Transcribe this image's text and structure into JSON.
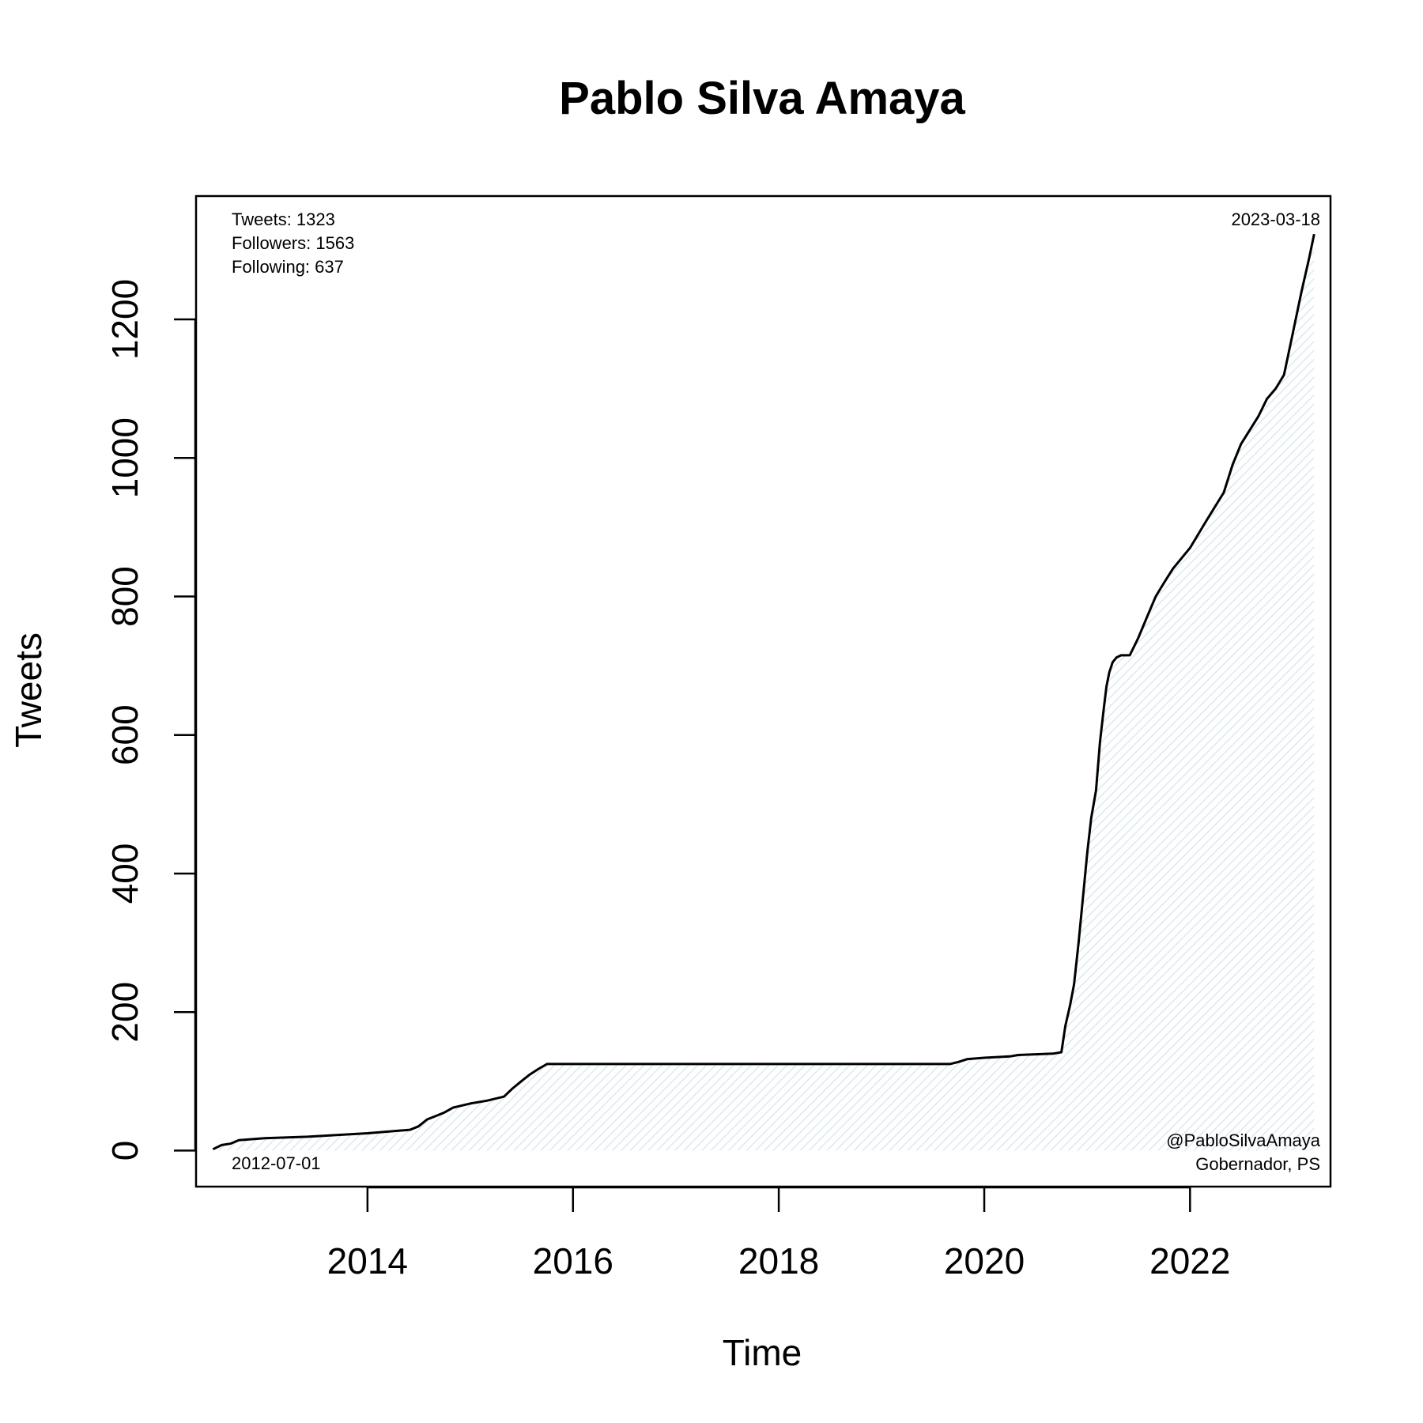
{
  "chart_data": {
    "type": "area",
    "title": "Pablo Silva Amaya",
    "xlabel": "Time",
    "ylabel": "Tweets",
    "x_ticks": [
      "2014",
      "2016",
      "2018",
      "2020",
      "2022"
    ],
    "y_ticks": [
      "0",
      "200",
      "400",
      "600",
      "800",
      "1000",
      "1200"
    ],
    "xlim": [
      "2012-05-02",
      "2023-05-15"
    ],
    "ylim": [
      -52,
      1378
    ],
    "grid": false,
    "legend": "none",
    "line_color": "#000000",
    "fill_color": "#e8f3f6",
    "annotations": {
      "stats": [
        "Tweets: 1323",
        "Followers: 1563",
        "Following: 637"
      ],
      "start_date": "2012-07-01",
      "end_date": "2023-03-18",
      "handle": "@PabloSilvaAmaya",
      "role": "Gobernador, PS"
    },
    "series": [
      {
        "x": [
          "2012-07-01",
          "2012-08-01",
          "2012-09-01",
          "2012-10-01",
          "2013-01-01",
          "2013-06-01",
          "2014-01-01",
          "2014-06-01",
          "2014-07-01",
          "2014-08-01",
          "2014-09-01",
          "2014-10-01",
          "2014-11-01",
          "2015-01-01",
          "2015-03-01",
          "2015-05-01",
          "2015-06-01",
          "2015-07-01",
          "2015-08-01",
          "2015-09-01",
          "2015-10-01",
          "2016-01-01",
          "2017-01-01",
          "2018-01-01",
          "2019-01-01",
          "2019-09-01",
          "2019-10-01",
          "2019-11-01",
          "2020-01-01",
          "2020-04-01",
          "2020-05-01",
          "2020-09-01",
          "2020-10-01",
          "2020-10-15",
          "2020-11-01",
          "2020-11-15",
          "2020-12-01",
          "2020-12-20",
          "2021-01-01",
          "2021-01-15",
          "2021-02-01",
          "2021-02-15",
          "2021-03-01",
          "2021-03-10",
          "2021-03-20",
          "2021-04-01",
          "2021-04-15",
          "2021-05-01",
          "2021-06-01",
          "2021-07-01",
          "2021-08-01",
          "2021-09-01",
          "2021-10-01",
          "2021-11-01",
          "2022-01-01",
          "2022-03-01",
          "2022-05-01",
          "2022-06-01",
          "2022-07-01",
          "2022-09-01",
          "2022-10-01",
          "2022-11-01",
          "2022-12-01",
          "2023-01-01",
          "2023-02-01",
          "2023-03-01",
          "2023-03-18"
        ],
        "y": [
          2,
          8,
          10,
          15,
          18,
          20,
          25,
          30,
          35,
          45,
          50,
          55,
          62,
          68,
          72,
          78,
          90,
          100,
          110,
          118,
          125,
          125,
          125,
          125,
          125,
          125,
          128,
          132,
          134,
          136,
          138,
          140,
          142,
          180,
          210,
          240,
          300,
          380,
          430,
          480,
          520,
          590,
          640,
          670,
          690,
          705,
          712,
          715,
          715,
          740,
          770,
          800,
          820,
          840,
          870,
          910,
          950,
          990,
          1020,
          1060,
          1085,
          1100,
          1120,
          1180,
          1240,
          1290,
          1323
        ]
      }
    ]
  }
}
